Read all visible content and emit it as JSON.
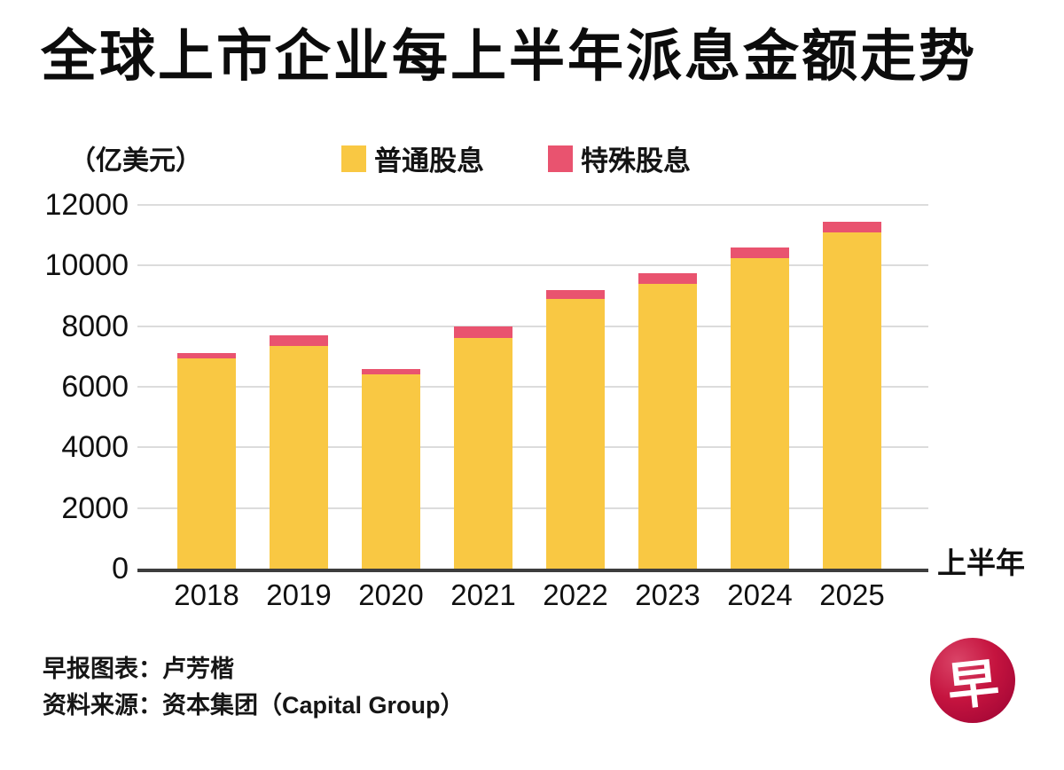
{
  "title": "全球上市企业每上半年派息金额走势",
  "unit_label": "（亿美元）",
  "legend": {
    "ordinary": {
      "label": "普通股息",
      "color": "#F9C843"
    },
    "special": {
      "label": "特殊股息",
      "color": "#E9536F"
    }
  },
  "axis": {
    "x_title": "上半年",
    "y_max_label": "12000"
  },
  "footer": {
    "credit": "早报图表：卢芳楷",
    "source": "资料来源：资本集团（Capital Group）"
  },
  "logo": {
    "glyph": "早",
    "bg_color": "#C5143F"
  },
  "colors": {
    "ordinary_bar": "#F9C843",
    "special_bar": "#E9536F",
    "gridline": "#DCDCDC",
    "axis_line": "#3D3D3D",
    "background": "#FFFFFF",
    "text": "#111111"
  },
  "chart_data": {
    "type": "bar",
    "stacked": true,
    "title": "全球上市企业每上半年派息金额走势",
    "xlabel": "上半年",
    "ylabel": "（亿美元）",
    "categories": [
      "2018",
      "2019",
      "2020",
      "2021",
      "2022",
      "2023",
      "2024",
      "2025"
    ],
    "series": [
      {
        "name": "普通股息",
        "color": "#F9C843",
        "values": [
          6950,
          7350,
          6400,
          7600,
          8900,
          9400,
          10250,
          11100
        ]
      },
      {
        "name": "特殊股息",
        "color": "#E9536F",
        "values": [
          150,
          350,
          200,
          380,
          300,
          350,
          350,
          350
        ]
      }
    ],
    "totals": [
      7100,
      7700,
      6600,
      7980,
      9200,
      9750,
      10600,
      11450
    ],
    "ylim": [
      0,
      12000
    ],
    "yticks": [
      0,
      2000,
      4000,
      6000,
      8000,
      10000,
      12000
    ],
    "grid": true,
    "legend_position": "top"
  }
}
